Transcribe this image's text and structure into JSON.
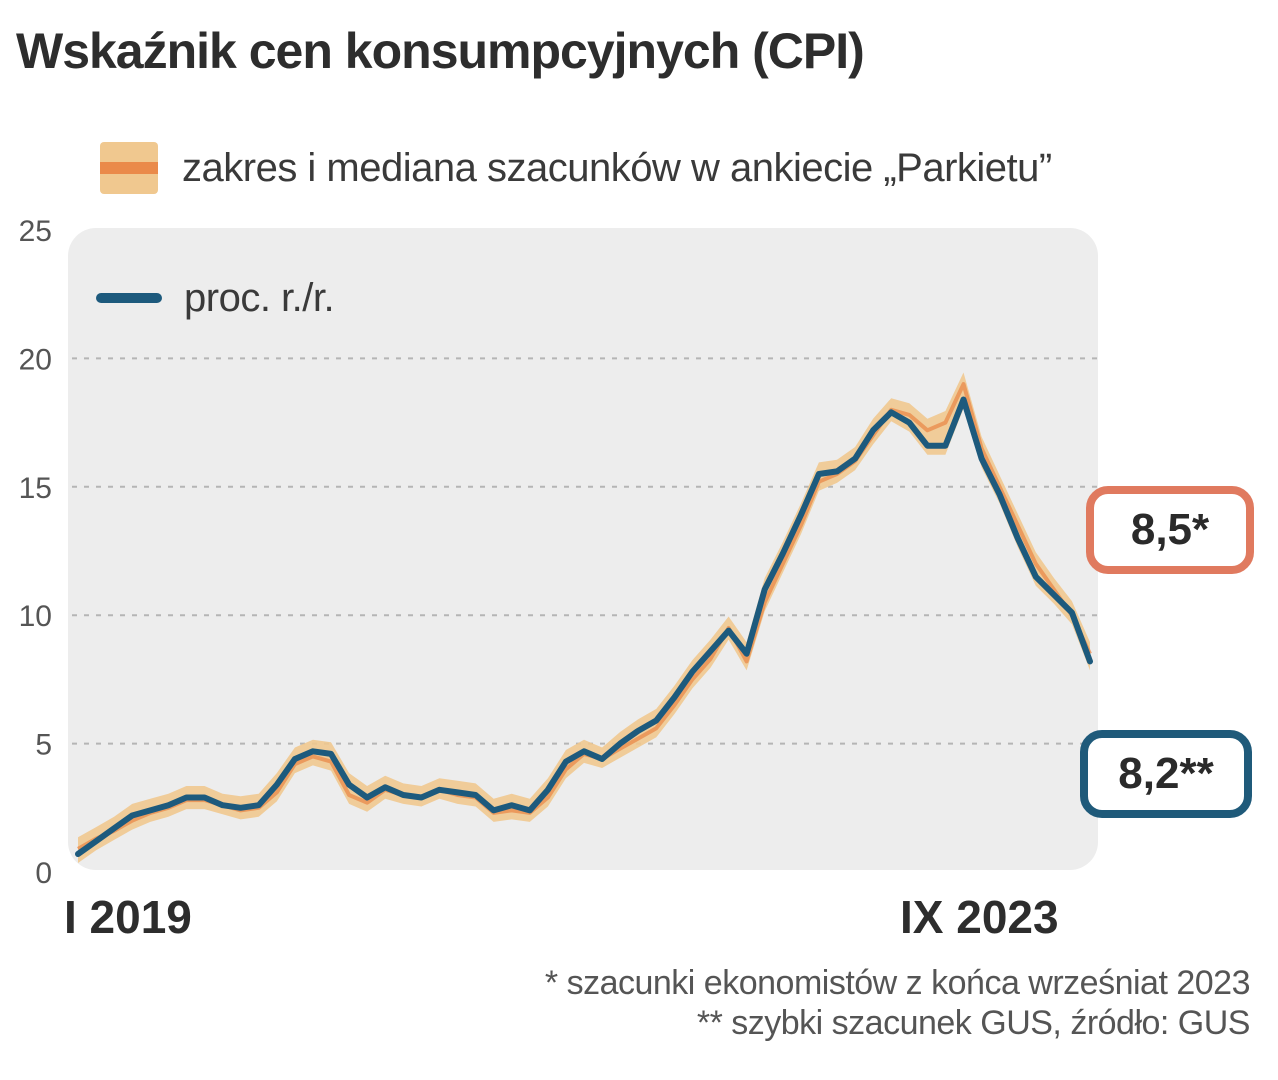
{
  "title": "Wskaźnik cen konsumpcyjnych (CPI)",
  "legend": {
    "range_label": "zakres i mediana szacunków w ankiecie „Parkietu”",
    "line_label": "proc. r./r."
  },
  "colors": {
    "range_fill": "#f0c88f",
    "median": "#ea8a4a",
    "cpi_line": "#1d5a7d",
    "estimate_box": "#e07a5f",
    "gus_box": "#1f5a7a"
  },
  "chart_data": {
    "type": "line",
    "title": "Wskaźnik cen konsumpcyjnych (CPI)",
    "ylabel": "proc. r./r.",
    "ylim": [
      0,
      25
    ],
    "yticks": [
      0,
      5,
      10,
      15,
      20,
      25
    ],
    "grid": true,
    "x_start_label": "I 2019",
    "x_end_label": "IX 2023",
    "categories": [
      "I 2019",
      "II 2019",
      "III 2019",
      "IV 2019",
      "V 2019",
      "VI 2019",
      "VII 2019",
      "VIII 2019",
      "IX 2019",
      "X 2019",
      "XI 2019",
      "XII 2019",
      "I 2020",
      "II 2020",
      "III 2020",
      "IV 2020",
      "V 2020",
      "VI 2020",
      "VII 2020",
      "VIII 2020",
      "IX 2020",
      "X 2020",
      "XI 2020",
      "XII 2020",
      "I 2021",
      "II 2021",
      "III 2021",
      "IV 2021",
      "V 2021",
      "VI 2021",
      "VII 2021",
      "VIII 2021",
      "IX 2021",
      "X 2021",
      "XI 2021",
      "XII 2021",
      "I 2022",
      "II 2022",
      "III 2022",
      "IV 2022",
      "V 2022",
      "VI 2022",
      "VII 2022",
      "VIII 2022",
      "IX 2022",
      "X 2022",
      "XI 2022",
      "XII 2022",
      "I 2023",
      "II 2023",
      "III 2023",
      "IV 2023",
      "V 2023",
      "VI 2023",
      "VII 2023",
      "VIII 2023",
      "IX 2023"
    ],
    "series": [
      {
        "name": "proc. r./r.",
        "values": [
          0.7,
          1.2,
          1.7,
          2.2,
          2.4,
          2.6,
          2.9,
          2.9,
          2.6,
          2.5,
          2.6,
          3.4,
          4.4,
          4.7,
          4.6,
          3.4,
          2.9,
          3.3,
          3.0,
          2.9,
          3.2,
          3.1,
          3.0,
          2.4,
          2.6,
          2.4,
          3.2,
          4.3,
          4.7,
          4.4,
          5.0,
          5.5,
          5.9,
          6.8,
          7.8,
          8.6,
          9.4,
          8.5,
          11.0,
          12.4,
          13.9,
          15.5,
          15.6,
          16.1,
          17.2,
          17.9,
          17.5,
          16.6,
          16.6,
          18.4,
          16.1,
          14.7,
          13.0,
          11.5,
          10.8,
          10.1,
          8.2
        ]
      },
      {
        "name": "mediana szacunków",
        "values": [
          0.9,
          1.3,
          1.6,
          2.0,
          2.3,
          2.5,
          2.8,
          2.8,
          2.6,
          2.4,
          2.5,
          3.1,
          4.2,
          4.5,
          4.3,
          3.0,
          2.7,
          3.2,
          3.0,
          2.9,
          3.2,
          3.0,
          2.9,
          2.3,
          2.4,
          2.3,
          2.9,
          4.0,
          4.6,
          4.4,
          4.8,
          5.2,
          5.6,
          6.5,
          7.5,
          8.3,
          9.5,
          8.2,
          10.5,
          12.0,
          13.5,
          15.2,
          15.5,
          16.0,
          17.0,
          18.0,
          17.8,
          17.2,
          17.5,
          19.0,
          16.5,
          15.0,
          13.5,
          12.0,
          11.0,
          10.0,
          8.5
        ]
      }
    ],
    "annotations": [
      {
        "text": "8,5*",
        "series": "mediana szacunków"
      },
      {
        "text": "8,2**",
        "series": "proc. r./r."
      }
    ]
  },
  "footnotes": {
    "estimate": "* szacunki ekonomistów z końca wrześniat 2023",
    "source": "** szybki szacunek GUS, źródło: GUS"
  }
}
